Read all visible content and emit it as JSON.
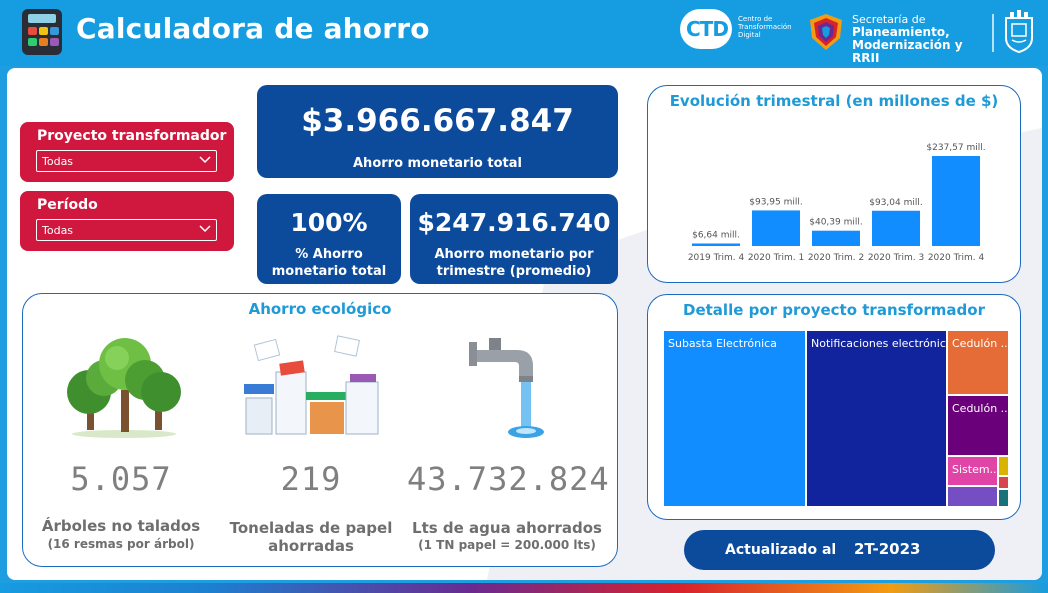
{
  "header": {
    "title": "Calculadora de ahorro",
    "ctd_logo_text": "CTD",
    "ctd_text": "Centro de Transformación Digital",
    "secretaria_line1": "Secretaría de",
    "secretaria_line2": "Planeamiento,",
    "secretaria_line3": "Modernización y RRII",
    "icons": [
      "calculator-icon",
      "ctd-logo",
      "secretaria-shield-logo",
      "municipal-crest-logo"
    ]
  },
  "filters": {
    "proyecto": {
      "label": "Proyecto transformador",
      "value": "Todas"
    },
    "periodo": {
      "label": "Período",
      "value": "Todas"
    }
  },
  "kpis": {
    "total": {
      "value": "$3.966.667.847",
      "label": "Ahorro monetario total"
    },
    "percent": {
      "value": "100%",
      "label_line1": "% Ahorro",
      "label_line2": "monetario total"
    },
    "avg": {
      "value": "$247.916.740",
      "label_line1": "Ahorro monetario por",
      "label_line2": "trimestre (promedio)"
    }
  },
  "eco": {
    "title": "Ahorro ecológico",
    "arboles": {
      "value": "5.057",
      "label": "Árboles no talados",
      "sub": "(16 resmas por árbol)",
      "icon": "trees-icon"
    },
    "papel": {
      "value": "219",
      "label_line1": "Toneladas de papel",
      "label_line2": "ahorradas",
      "icon": "paper-stacks-icon"
    },
    "agua": {
      "value": "43.732.824",
      "label": "Lts de agua ahorrados",
      "sub": "(1 TN papel = 200.000 lts)",
      "icon": "water-tap-icon"
    }
  },
  "chart_data": {
    "type": "bar",
    "title": "Evolución trimestral (en millones de $)",
    "categories": [
      "2019 Trim. 4",
      "2020 Trim. 1",
      "2020 Trim. 2",
      "2020 Trim. 3",
      "2020 Trim. 4"
    ],
    "values": [
      6.64,
      93.95,
      40.39,
      93.04,
      237.57
    ],
    "data_labels": [
      "$6,64 mill.",
      "$93,95 mill.",
      "$40,39 mill.",
      "$93,04 mill.",
      "$237,57 mill."
    ],
    "color": "#118dff",
    "grid": false,
    "legend": "none"
  },
  "treemap": {
    "title": "Detalle por proyecto transformador",
    "tiles": [
      {
        "label": "Subasta Electrónica",
        "color": "#118dff"
      },
      {
        "label": "Notificaciones electrónicas",
        "color": "#12239e"
      },
      {
        "label": "Cedulón ...",
        "color": "#e66c37"
      },
      {
        "label": "Cedulón ...",
        "color": "#6b007b"
      },
      {
        "label": "Sistem...",
        "color": "#e044a7"
      },
      {
        "label": "",
        "color": "#744ec2"
      },
      {
        "label": "",
        "color": "#d9b300"
      },
      {
        "label": "",
        "color": "#d64550"
      },
      {
        "label": "",
        "color": "#197278"
      }
    ]
  },
  "updated": {
    "prefix": "Actualizado al",
    "period": "2T-2023"
  }
}
